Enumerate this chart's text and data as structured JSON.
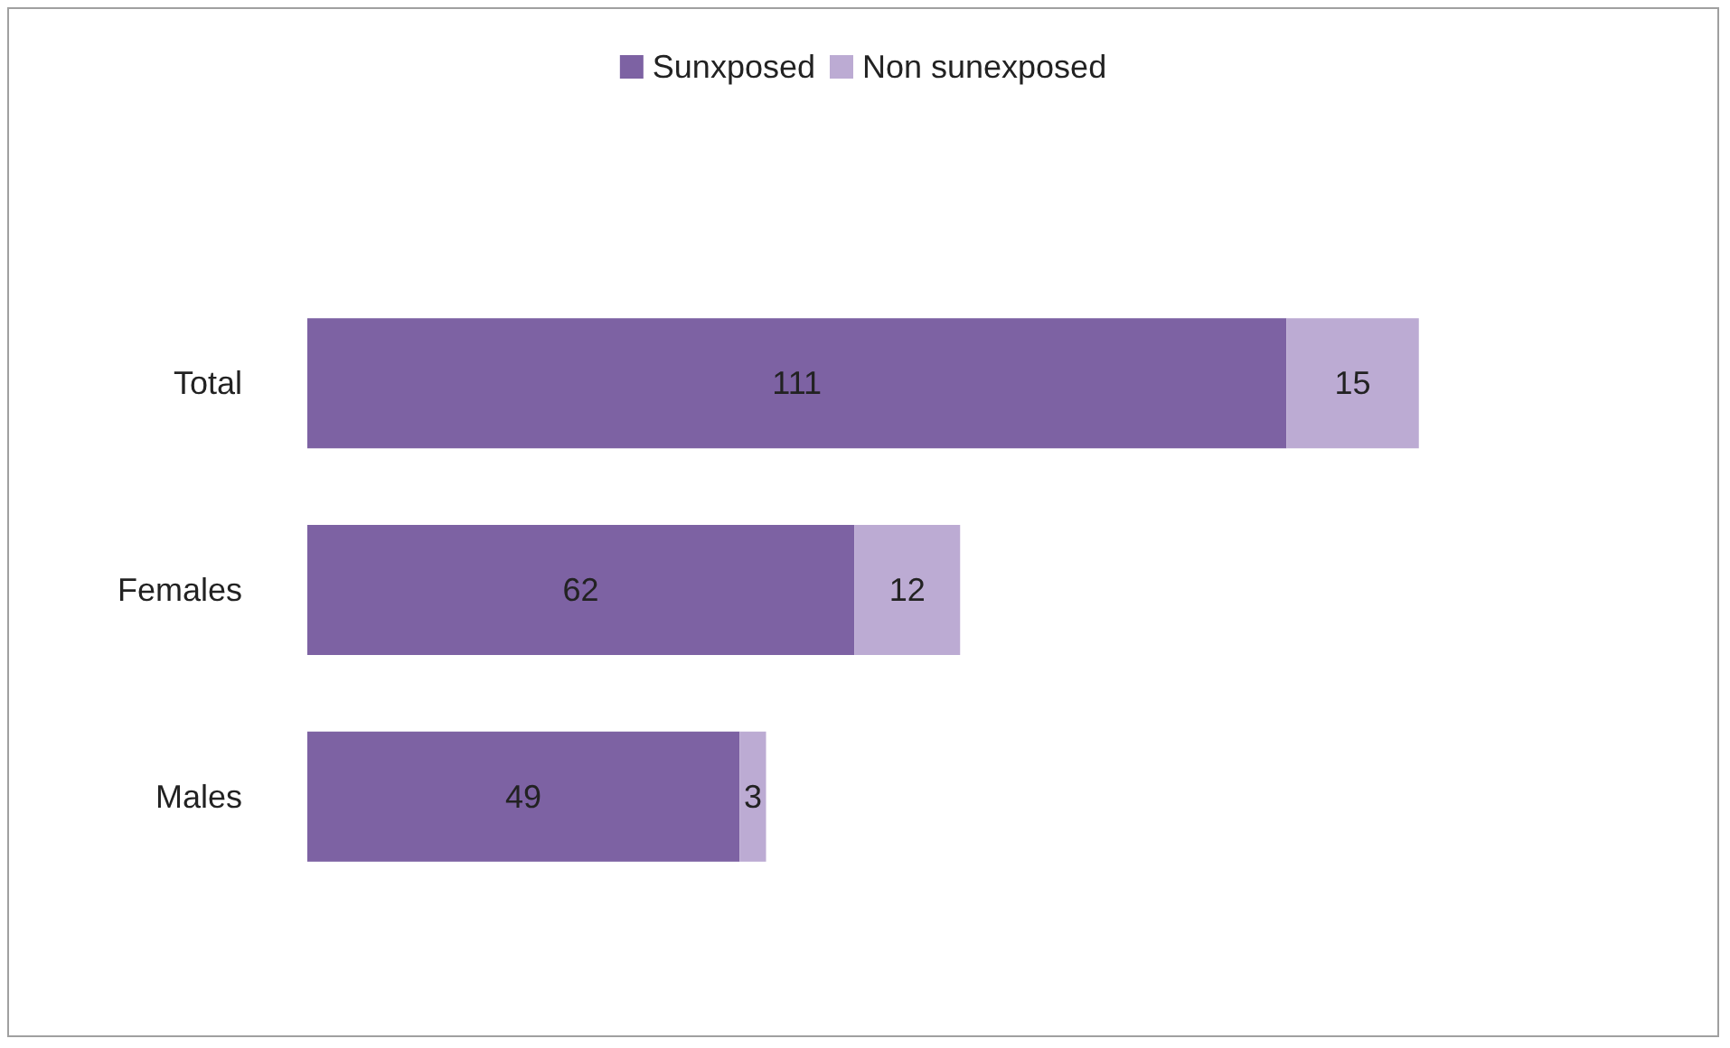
{
  "chart_data": {
    "type": "bar",
    "orientation": "horizontal",
    "stacked": true,
    "categories": [
      "Total",
      "Females",
      "Males"
    ],
    "series": [
      {
        "name": "Sunxposed",
        "color": "#7d62a3",
        "values": [
          111,
          62,
          49
        ]
      },
      {
        "name": "Non sunexposed",
        "color": "#bcabd3",
        "values": [
          15,
          12,
          3
        ]
      }
    ],
    "data_labels": true,
    "legend": "top"
  }
}
